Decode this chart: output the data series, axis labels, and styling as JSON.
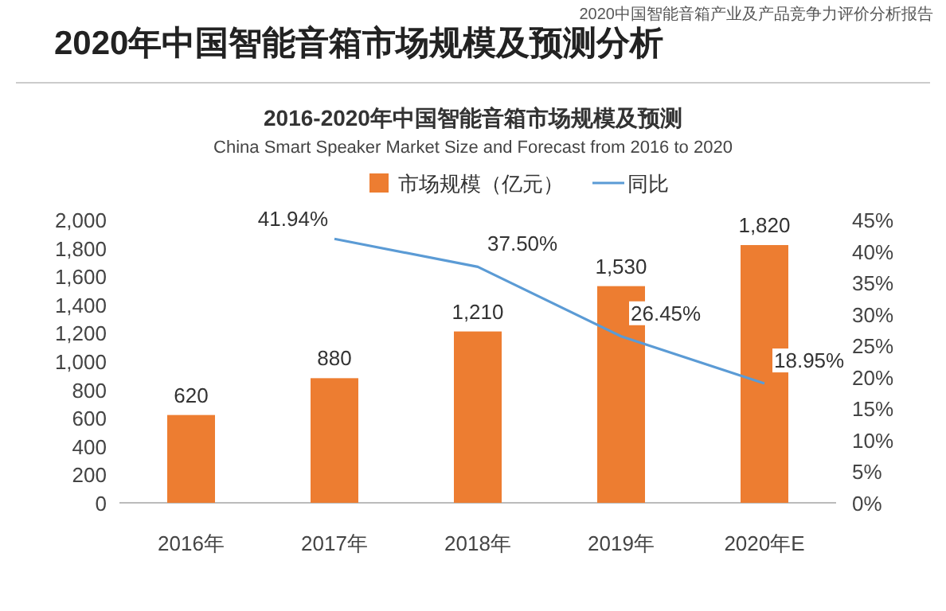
{
  "chart_data": {
    "type": "bar",
    "title": "2020年中国智能音箱市场规模及预测分析",
    "subtitle": "2016-2020年中国智能音箱市场规模及预测",
    "annotations": [
      "2020中国智能音箱产业及产品竞争力评价分析报告",
      "China Smart Speaker Market Size and Forecast from 2016 to 2020"
    ],
    "categories": [
      "2016年",
      "2017年",
      "2018年",
      "2019年",
      "2020年E"
    ],
    "series": [
      {
        "name": "市场规模（亿元）",
        "color": "#ed7d31",
        "values": [
          620,
          880,
          1210,
          1530,
          1820
        ],
        "value_labels": [
          "620",
          "880",
          "1,210",
          "1,530",
          "1,820"
        ]
      },
      {
        "name": "同比",
        "type": "line",
        "axis": "y2",
        "color": "#5b9bd5",
        "values": [
          null,
          41.94,
          37.5,
          26.45,
          18.95
        ],
        "value_labels": [
          null,
          "41.94%",
          "37.50%",
          "26.45%",
          "18.95%"
        ]
      }
    ],
    "ylim": [
      0,
      2000
    ],
    "yticks": [
      0,
      200,
      400,
      600,
      800,
      {
        "value": 1000,
        "label": "1,000"
      },
      {
        "value": 1200,
        "label": "1,200"
      },
      {
        "value": 1400,
        "label": "1,400"
      },
      {
        "value": 1600,
        "label": "1,600"
      },
      {
        "value": 1800,
        "label": "1,800"
      },
      {
        "value": 2000,
        "label": "2,000"
      }
    ],
    "y2lim": [
      0,
      45
    ],
    "y2ticks": [
      {
        "value": 0,
        "label": "0%"
      },
      {
        "value": 5,
        "label": "5%"
      },
      {
        "value": 10,
        "label": "10%"
      },
      {
        "value": 15,
        "label": "15%"
      },
      {
        "value": 20,
        "label": "20%"
      },
      {
        "value": 25,
        "label": "25%"
      },
      {
        "value": 30,
        "label": "30%"
      },
      {
        "value": 35,
        "label": "35%"
      },
      {
        "value": 40,
        "label": "40%"
      },
      {
        "value": 45,
        "label": "45%"
      }
    ],
    "legend": "top"
  }
}
